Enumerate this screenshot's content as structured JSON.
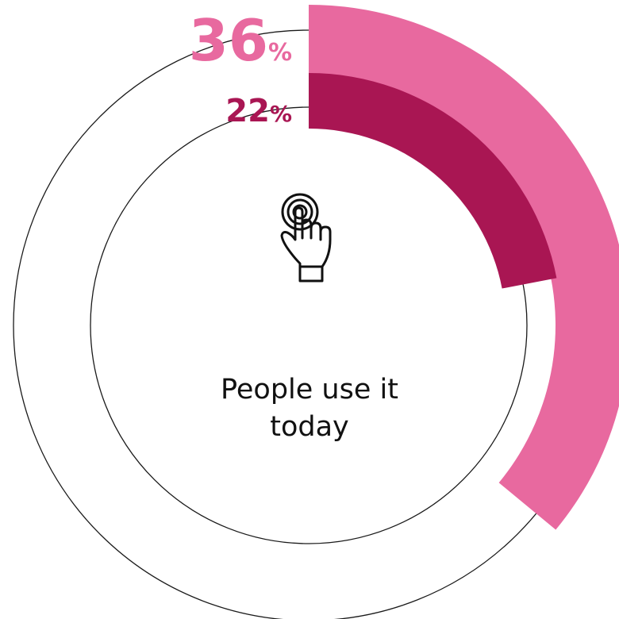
{
  "chart_data": {
    "type": "pie",
    "subtype": "radial-bar",
    "series": [
      {
        "value": 36,
        "value_label": "36",
        "unit": "%",
        "color": "#e8699f"
      },
      {
        "value": 22,
        "value_label": "22",
        "unit": "%",
        "color": "#a91653"
      }
    ],
    "center_label_line1": "People use it",
    "center_label_line2": "today",
    "icon": "tap-hand-icon",
    "track_color": "#1a1a1a"
  }
}
